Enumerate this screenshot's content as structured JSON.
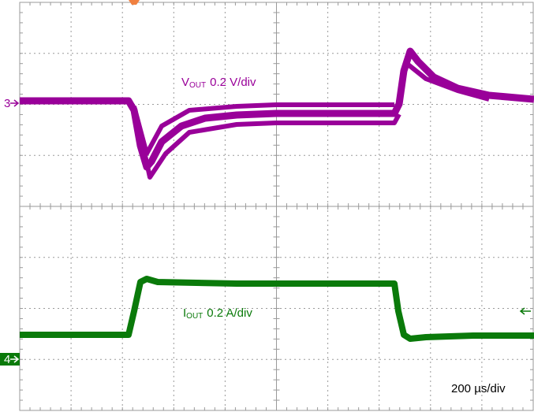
{
  "channels": [
    {
      "number": "3",
      "symbol": "V",
      "subscript": "OUT",
      "scale": "0.2 V/div"
    },
    {
      "number": "4",
      "symbol": "I",
      "subscript": "OUT",
      "scale": "0.2 A/div"
    }
  ],
  "timebase": "200 µs/div"
}
